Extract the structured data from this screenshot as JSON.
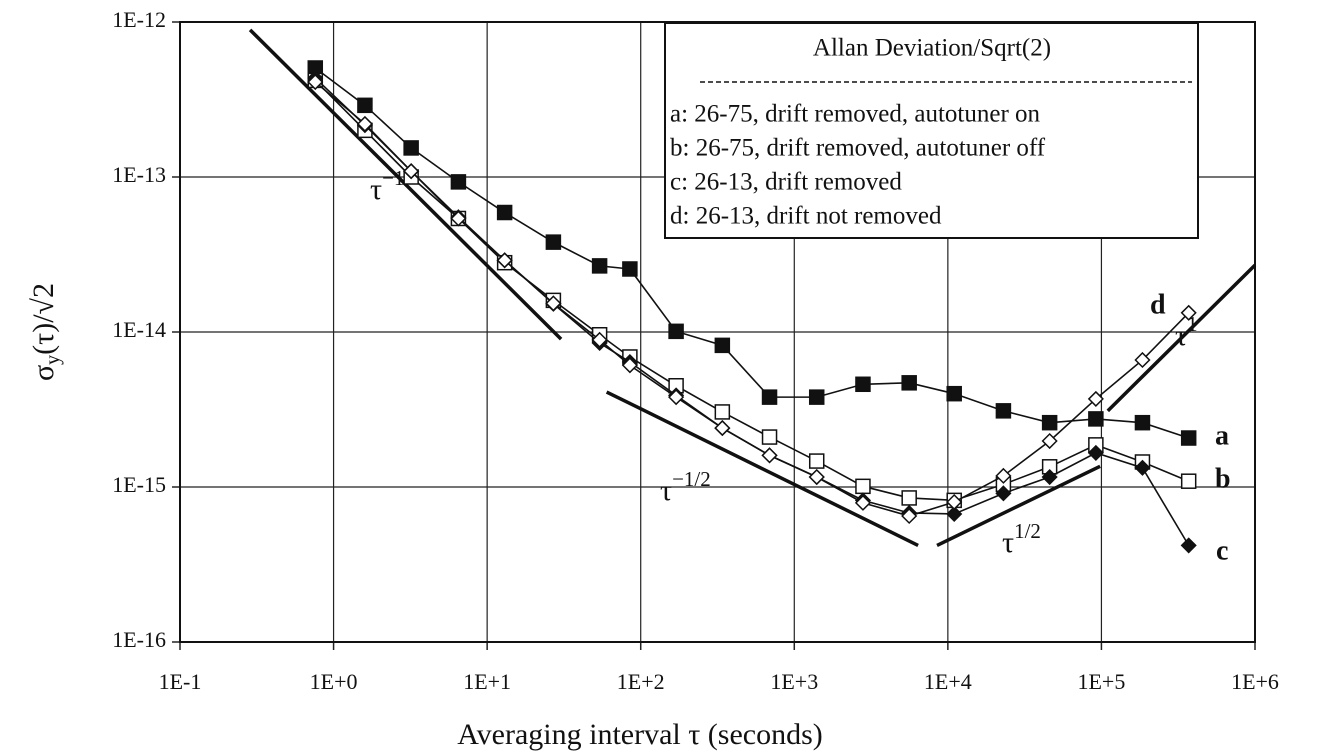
{
  "chart_data": {
    "type": "line",
    "x_label": "Averaging interval τ  (seconds)",
    "y_label": {
      "main": "σ",
      "sub": "y",
      "rest": "(τ)/√2"
    },
    "legend_title": "Allan Deviation/Sqrt(2)",
    "log_x": true,
    "log_y": true,
    "grid": true,
    "legend": "upper right",
    "xlim": [
      0.1,
      1000000
    ],
    "ylim": [
      1e-16,
      1e-12
    ],
    "xticks": [
      {
        "value": 0.1,
        "label": "1E-1"
      },
      {
        "value": 1,
        "label": "1E+0"
      },
      {
        "value": 10,
        "label": "1E+1"
      },
      {
        "value": 100,
        "label": "1E+2"
      },
      {
        "value": 1000,
        "label": "1E+3"
      },
      {
        "value": 10000,
        "label": "1E+4"
      },
      {
        "value": 100000,
        "label": "1E+5"
      },
      {
        "value": 1000000,
        "label": "1E+6"
      }
    ],
    "yticks": [
      {
        "value": 1e-16,
        "label": "1E-16"
      },
      {
        "value": 1e-15,
        "label": "1E-15"
      },
      {
        "value": 1e-14,
        "label": "1E-14"
      },
      {
        "value": 1e-13,
        "label": "1E-13"
      },
      {
        "value": 1e-12,
        "label": "1E-12"
      }
    ],
    "x": [
      0.76,
      1.6,
      3.2,
      6.5,
      13,
      27,
      54,
      85,
      170,
      340,
      690,
      1400,
      2800,
      5600,
      11000,
      23000,
      46000,
      92000,
      185000,
      370000
    ],
    "series": [
      {
        "name": "a: 26-75, drift removed, autotuner on",
        "tag": "a",
        "marker": "square",
        "filled": true,
        "color": "#111111",
        "values": [
          5.05e-13,
          2.9e-13,
          1.54e-13,
          9.3e-14,
          5.9e-14,
          3.8e-14,
          2.67e-14,
          2.55e-14,
          1.01e-14,
          8.2e-15,
          3.8e-15,
          3.8e-15,
          4.6e-15,
          4.7e-15,
          4e-15,
          3.1e-15,
          2.6e-15,
          2.75e-15,
          2.6e-15,
          2.07e-15
        ]
      },
      {
        "name": "b: 26-75, drift removed, autotuner off",
        "tag": "b",
        "marker": "square",
        "filled": false,
        "color": "#111111",
        "values": [
          4.2e-13,
          2e-13,
          1e-13,
          5.4e-14,
          2.8e-14,
          1.6e-14,
          9.6e-15,
          6.9e-15,
          4.5e-15,
          3.05e-15,
          2.1e-15,
          1.47e-15,
          1.01e-15,
          8.5e-16,
          8.2e-16,
          1.04e-15,
          1.35e-15,
          1.87e-15,
          1.45e-15,
          1.09e-15
        ]
      },
      {
        "name": "c: 26-13, drift removed",
        "tag": "c",
        "marker": "diamond",
        "filled": true,
        "color": "#111111",
        "values": [
          4.35e-13,
          2.16e-13,
          1.09e-13,
          5.5e-14,
          2.9e-14,
          1.52e-14,
          8.5e-15,
          6.4e-15,
          3.9e-15,
          2.4e-15,
          1.6e-15,
          1.16e-15,
          8.2e-16,
          6.8e-16,
          6.7e-16,
          9.1e-16,
          1.16e-15,
          1.66e-15,
          1.33e-15,
          4.2e-16
        ]
      },
      {
        "name": "d: 26-13, drift not removed",
        "tag": "d",
        "marker": "diamond",
        "filled": false,
        "color": "#111111",
        "values": [
          4.1e-13,
          2.2e-13,
          1.09e-13,
          5.4e-14,
          2.9e-14,
          1.53e-14,
          8.9e-15,
          6.1e-15,
          3.8e-15,
          2.4e-15,
          1.6e-15,
          1.16e-15,
          7.9e-16,
          6.5e-16,
          8e-16,
          1.18e-15,
          1.98e-15,
          3.7e-15,
          6.6e-15,
          1.33e-14
        ]
      }
    ],
    "reference_lines": [
      {
        "base": "τ",
        "exponent": "−1",
        "x": [
          0.286,
          30.3
        ],
        "y": [
          8.9e-13,
          9e-15
        ]
      },
      {
        "base": "τ",
        "exponent": "−1/2",
        "x": [
          60,
          6400
        ],
        "y": [
          4.1e-15,
          4.2e-16
        ]
      },
      {
        "base": "τ",
        "exponent": "1/2",
        "x": [
          8500,
          98000
        ],
        "y": [
          4.2e-16,
          1.36e-15
        ]
      },
      {
        "base": "τ",
        "exponent": "1",
        "x": [
          110000,
          1000000
        ],
        "y": [
          3.1e-15,
          2.7e-14
        ]
      }
    ]
  }
}
